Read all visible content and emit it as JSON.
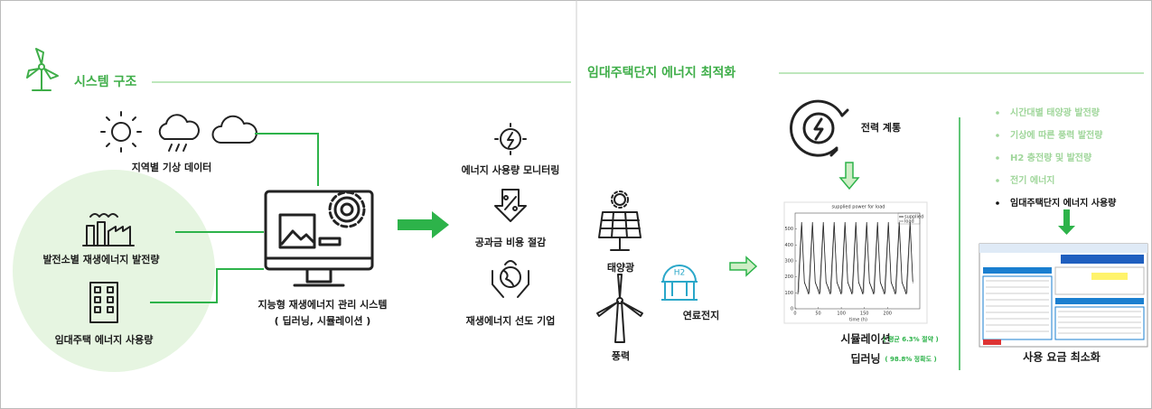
{
  "left": {
    "title": "시스템 구조",
    "weather_label": "지역별 기상 데이터",
    "plant_label": "발전소별 재생에너지 발전량",
    "housing_label": "임대주택 에너지 사용량",
    "system_label": [
      "지능형 재생에너지 관리 시스템",
      "( 딥러닝, 시뮬레이션 )"
    ],
    "outputs": [
      "에너지 사용량 모니터링",
      "공과금 비용 절감",
      "재생에너지 선도 기업"
    ]
  },
  "right": {
    "title": "임대주택단지 에너지 최적화",
    "grid_label": "전력 계통",
    "sources": [
      "태양광",
      "풍력",
      "연료전지"
    ],
    "h2_icon": "H2",
    "mini_chart": {
      "title": "supplied power for load",
      "x_label": "time (h)",
      "legend": [
        "supplied",
        "load"
      ],
      "xlim": [
        0,
        270
      ],
      "ylim": [
        0,
        600
      ],
      "xticks": [
        0,
        50,
        100,
        150,
        200
      ],
      "yticks": [
        0,
        100,
        200,
        300,
        400,
        500
      ]
    },
    "results": [
      {
        "name": "시뮬레이션",
        "note": "( 평균 6.3% 절약 )"
      },
      {
        "name": "딥러닝",
        "note": "( 98.8% 정확도 )"
      }
    ],
    "inputs": [
      "시간대별 태양광 발전량",
      "기상에 따른 풍력 발전량",
      "H2 충전량 및 발전량",
      "전기 에너지",
      "임대주택단지 에너지 사용량"
    ],
    "goal": "사용 요금 최소화"
  }
}
